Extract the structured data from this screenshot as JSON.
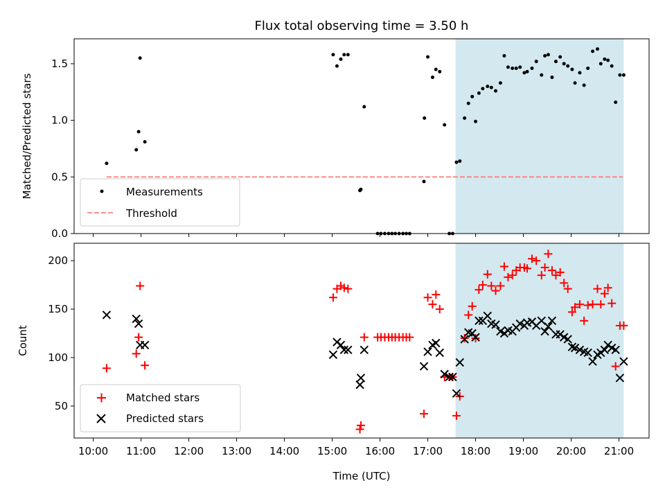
{
  "chart_data": {
    "title": "Flux total observing time = 3.50 h",
    "xlabel": "Time (UTC)",
    "x_unit": "hours UTC",
    "xlim": [
      9.6,
      21.63
    ],
    "xticks": [
      10,
      11,
      12,
      13,
      14,
      15,
      16,
      17,
      18,
      19,
      20,
      21
    ],
    "xtick_labels": [
      "10:00",
      "11:00",
      "12:00",
      "13:00",
      "14:00",
      "15:00",
      "16:00",
      "17:00",
      "18:00",
      "19:00",
      "20:00",
      "21:00"
    ],
    "highlight_span": [
      17.58,
      21.1
    ],
    "highlight_color": "#d3e9ef",
    "top": {
      "type": "scatter",
      "ylabel": "Matched/Predicted stars",
      "ylim": [
        0,
        1.72
      ],
      "yticks": [
        0.0,
        0.5,
        1.0,
        1.5
      ],
      "ytick_labels": [
        "0.0",
        "0.5",
        "1.0",
        "1.5"
      ],
      "threshold": {
        "value": 0.5,
        "x_range": [
          10.28,
          21.08
        ],
        "color": "#ff7f7f"
      },
      "legend": [
        "Measurements",
        "Threshold"
      ],
      "x": [
        10.28,
        10.9,
        10.95,
        10.98,
        11.08,
        15.02,
        15.1,
        15.18,
        15.25,
        15.33,
        15.58,
        15.6,
        15.67,
        15.95,
        16.02,
        16.1,
        16.18,
        16.25,
        16.32,
        16.4,
        16.48,
        16.55,
        16.62,
        16.92,
        16.93,
        17.0,
        17.1,
        17.17,
        17.25,
        17.35,
        17.45,
        17.52,
        17.6,
        17.67,
        17.77,
        17.85,
        17.93,
        18.0,
        18.07,
        18.15,
        18.25,
        18.33,
        18.42,
        18.52,
        18.6,
        18.68,
        18.77,
        18.85,
        18.93,
        19.02,
        19.08,
        19.18,
        19.27,
        19.38,
        19.45,
        19.52,
        19.6,
        19.68,
        19.77,
        19.85,
        19.93,
        20.02,
        20.08,
        20.18,
        20.27,
        20.35,
        20.45,
        20.55,
        20.62,
        20.7,
        20.77,
        20.85,
        20.93,
        21.02,
        21.1
      ],
      "y": [
        0.62,
        0.74,
        0.9,
        1.55,
        0.81,
        1.58,
        1.48,
        1.54,
        1.58,
        1.58,
        0.38,
        0.39,
        1.12,
        0.0,
        0.0,
        0.0,
        0.0,
        0.0,
        0.0,
        0.0,
        0.0,
        0.0,
        0.0,
        0.46,
        1.02,
        1.56,
        1.38,
        1.45,
        1.43,
        0.96,
        0.0,
        0.0,
        0.63,
        0.64,
        1.02,
        1.15,
        1.21,
        0.99,
        1.24,
        1.28,
        1.3,
        1.29,
        1.26,
        1.33,
        1.57,
        1.47,
        1.46,
        1.46,
        1.47,
        1.42,
        1.43,
        1.46,
        1.52,
        1.4,
        1.57,
        1.58,
        1.38,
        1.52,
        1.56,
        1.5,
        1.48,
        1.45,
        1.33,
        1.42,
        1.31,
        1.46,
        1.61,
        1.63,
        1.5,
        1.54,
        1.53,
        1.48,
        1.16,
        1.4,
        1.4
      ]
    },
    "bottom": {
      "type": "scatter",
      "ylabel": "Count",
      "ylim": [
        17,
        218
      ],
      "yticks": [
        50,
        100,
        150,
        200
      ],
      "ytick_labels": [
        "50",
        "100",
        "150",
        "200"
      ],
      "legend": [
        "Matched stars",
        "Predicted stars"
      ],
      "series": [
        {
          "name": "Matched stars",
          "marker": "plus",
          "color": "#ff0000",
          "x": [
            10.28,
            10.9,
            10.95,
            10.98,
            11.08,
            15.02,
            15.1,
            15.18,
            15.25,
            15.33,
            15.58,
            15.6,
            15.67,
            15.95,
            16.02,
            16.1,
            16.18,
            16.25,
            16.32,
            16.4,
            16.48,
            16.55,
            16.62,
            16.92,
            17.0,
            17.1,
            17.17,
            17.25,
            17.35,
            17.45,
            17.52,
            17.6,
            17.67,
            17.77,
            17.85,
            17.93,
            18.0,
            18.07,
            18.15,
            18.25,
            18.33,
            18.42,
            18.52,
            18.6,
            18.68,
            18.77,
            18.85,
            18.93,
            19.02,
            19.08,
            19.18,
            19.27,
            19.38,
            19.45,
            19.52,
            19.6,
            19.68,
            19.77,
            19.85,
            19.93,
            20.02,
            20.08,
            20.18,
            20.27,
            20.35,
            20.45,
            20.55,
            20.62,
            20.7,
            20.77,
            20.85,
            20.93,
            21.02,
            21.1
          ],
          "y": [
            89,
            104,
            121,
            174,
            92,
            162,
            171,
            174,
            172,
            171,
            26,
            30,
            121,
            121,
            121,
            121,
            121,
            121,
            121,
            121,
            121,
            121,
            121,
            42,
            162,
            155,
            165,
            150,
            80,
            80,
            80,
            40,
            60,
            120,
            144,
            153,
            120,
            170,
            175,
            186,
            174,
            169,
            174,
            194,
            183,
            185,
            190,
            193,
            193,
            192,
            202,
            200,
            185,
            193,
            207,
            190,
            185,
            188,
            177,
            171,
            147,
            152,
            155,
            138,
            154,
            155,
            171,
            155,
            166,
            172,
            156,
            91,
            133,
            133
          ]
        },
        {
          "name": "Predicted stars",
          "marker": "x",
          "color": "#000000",
          "x": [
            10.28,
            10.9,
            10.95,
            10.98,
            11.08,
            15.02,
            15.1,
            15.18,
            15.25,
            15.33,
            15.58,
            15.6,
            15.67,
            16.92,
            17.0,
            17.1,
            17.17,
            17.25,
            17.35,
            17.45,
            17.52,
            17.6,
            17.67,
            17.77,
            17.85,
            17.93,
            18.0,
            18.07,
            18.15,
            18.25,
            18.33,
            18.42,
            18.52,
            18.6,
            18.68,
            18.77,
            18.85,
            18.93,
            19.02,
            19.08,
            19.18,
            19.27,
            19.38,
            19.45,
            19.52,
            19.6,
            19.68,
            19.77,
            19.85,
            19.93,
            20.02,
            20.08,
            20.18,
            20.27,
            20.35,
            20.45,
            20.55,
            20.62,
            20.7,
            20.77,
            20.85,
            20.93,
            21.02,
            21.1
          ],
          "y": [
            144,
            140,
            135,
            113,
            113,
            103,
            116,
            113,
            108,
            108,
            72,
            79,
            108,
            91,
            106,
            113,
            115,
            105,
            83,
            80,
            80,
            63,
            95,
            119,
            126,
            125,
            121,
            138,
            138,
            143,
            135,
            134,
            127,
            125,
            128,
            127,
            131,
            135,
            133,
            136,
            137,
            133,
            138,
            127,
            132,
            138,
            124,
            124,
            121,
            119,
            111,
            110,
            108,
            106,
            105,
            96,
            103,
            105,
            108,
            113,
            110,
            108,
            79,
            96
          ]
        }
      ]
    }
  }
}
